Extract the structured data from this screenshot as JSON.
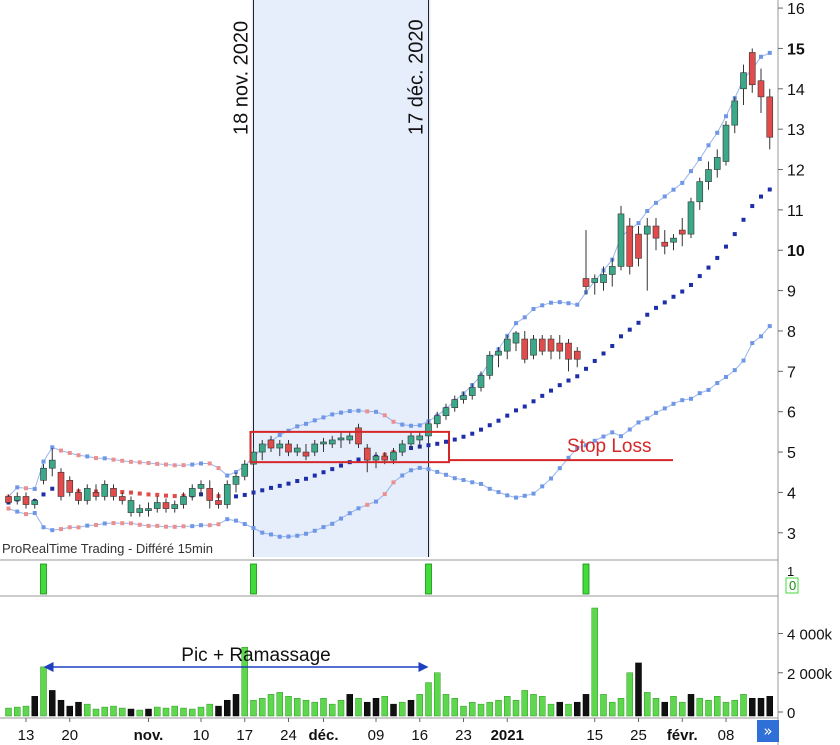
{
  "watermark": "ProRealTime Trading - Différé 15min",
  "nav_button_glyph": "»",
  "colors": {
    "up": "#3aa889",
    "down": "#e24b4b",
    "band_upper": "#6f97e6",
    "band_red": "#ec8f8f",
    "mid_dots": "#1d2ea8",
    "highlight_fill": "#e6eefb",
    "rect": "#d62728",
    "volume_up": "#5ed64e",
    "volume_down": "#111111",
    "signal": "#3fdc3a"
  },
  "chart_data": {
    "type": "candlestick",
    "y_ticks": [
      3,
      4,
      5,
      6,
      7,
      8,
      9,
      10,
      11,
      12,
      13,
      14,
      15,
      16
    ],
    "ylim": [
      2.4,
      16.2
    ],
    "x_ticks": [
      {
        "label": "13",
        "i": 2
      },
      {
        "label": "20",
        "i": 7
      },
      {
        "label": "nov.",
        "i": 16
      },
      {
        "label": "10",
        "i": 22
      },
      {
        "label": "17",
        "i": 27
      },
      {
        "label": "24",
        "i": 32
      },
      {
        "label": "déc.",
        "i": 36
      },
      {
        "label": "09",
        "i": 42
      },
      {
        "label": "16",
        "i": 47
      },
      {
        "label": "23",
        "i": 52
      },
      {
        "label": "2021",
        "i": 57
      },
      {
        "label": "15",
        "i": 67
      },
      {
        "label": "25",
        "i": 72
      },
      {
        "label": "févr.",
        "i": 77
      },
      {
        "label": "08",
        "i": 82
      }
    ],
    "vlines": [
      {
        "label": "18 nov. 2020",
        "i": 28
      },
      {
        "label": "17 déc. 2020",
        "i": 48
      }
    ],
    "stop_loss": {
      "label": "Stop Loss",
      "value": 4.8
    },
    "box": {
      "i0": 28,
      "i1": 50,
      "y0": 4.75,
      "y1": 5.5
    },
    "volume_annotation": {
      "label": "Pic + Ramassage",
      "i0": 4,
      "i1": 48
    },
    "volume_ticks": [
      {
        "label": "4 000k",
        "v": 4000
      },
      {
        "label": "2 000k",
        "v": 2000
      },
      {
        "label": "0",
        "v": 0
      }
    ],
    "vol_max": 5300,
    "signal_labels": [
      "1",
      "0"
    ],
    "signals": [
      4,
      28,
      48,
      66
    ],
    "candles": [
      [
        3.9,
        3.95,
        3.7,
        3.75
      ],
      [
        3.8,
        4.0,
        3.7,
        3.9
      ],
      [
        3.9,
        4.0,
        3.6,
        3.7
      ],
      [
        3.7,
        3.85,
        3.6,
        3.8
      ],
      [
        4.3,
        4.7,
        4.2,
        4.6
      ],
      [
        4.6,
        5.1,
        4.4,
        4.8
      ],
      [
        4.5,
        4.6,
        3.8,
        3.9
      ],
      [
        4.3,
        4.4,
        3.9,
        4.0
      ],
      [
        4.0,
        4.1,
        3.7,
        3.8
      ],
      [
        3.8,
        4.2,
        3.7,
        4.1
      ],
      [
        4.0,
        4.2,
        3.8,
        3.9
      ],
      [
        3.9,
        4.3,
        3.8,
        4.2
      ],
      [
        4.1,
        4.2,
        3.8,
        3.9
      ],
      [
        3.9,
        4.0,
        3.7,
        3.8
      ],
      [
        3.5,
        3.9,
        3.4,
        3.8
      ],
      [
        3.5,
        3.7,
        3.4,
        3.6
      ],
      [
        3.55,
        3.75,
        3.4,
        3.6
      ],
      [
        3.6,
        3.9,
        3.5,
        3.75
      ],
      [
        3.75,
        3.85,
        3.5,
        3.6
      ],
      [
        3.6,
        3.8,
        3.5,
        3.7
      ],
      [
        3.7,
        4.0,
        3.6,
        3.9
      ],
      [
        3.9,
        4.2,
        3.8,
        4.1
      ],
      [
        4.1,
        4.3,
        3.9,
        4.2
      ],
      [
        4.1,
        4.3,
        3.6,
        3.8
      ],
      [
        3.8,
        4.0,
        3.6,
        3.7
      ],
      [
        3.7,
        4.3,
        3.6,
        4.2
      ],
      [
        4.2,
        4.5,
        4.0,
        4.4
      ],
      [
        4.4,
        4.8,
        4.3,
        4.7
      ],
      [
        4.7,
        5.1,
        4.6,
        5.0
      ],
      [
        5.0,
        5.3,
        4.8,
        5.2
      ],
      [
        5.3,
        5.4,
        5.0,
        5.1
      ],
      [
        5.1,
        5.3,
        4.9,
        5.2
      ],
      [
        5.2,
        5.3,
        4.9,
        5.0
      ],
      [
        5.0,
        5.2,
        4.9,
        5.1
      ],
      [
        5.0,
        5.2,
        4.8,
        4.9
      ],
      [
        5.0,
        5.3,
        4.9,
        5.2
      ],
      [
        5.2,
        5.35,
        5.0,
        5.25
      ],
      [
        5.2,
        5.4,
        5.1,
        5.3
      ],
      [
        5.3,
        5.5,
        5.1,
        5.35
      ],
      [
        5.3,
        5.5,
        5.2,
        5.4
      ],
      [
        5.6,
        5.7,
        5.1,
        5.2
      ],
      [
        5.1,
        5.2,
        4.5,
        4.8
      ],
      [
        4.8,
        5.0,
        4.6,
        4.9
      ],
      [
        4.9,
        5.0,
        4.7,
        4.8
      ],
      [
        4.8,
        5.1,
        4.7,
        5.0
      ],
      [
        5.0,
        5.3,
        4.9,
        5.2
      ],
      [
        5.2,
        5.5,
        5.1,
        5.4
      ],
      [
        5.3,
        5.5,
        5.1,
        5.4
      ],
      [
        5.4,
        5.8,
        5.2,
        5.7
      ],
      [
        5.7,
        6.0,
        5.6,
        5.9
      ],
      [
        5.9,
        6.2,
        5.8,
        6.1
      ],
      [
        6.1,
        6.4,
        6.0,
        6.3
      ],
      [
        6.3,
        6.5,
        6.2,
        6.4
      ],
      [
        6.4,
        6.7,
        6.3,
        6.6
      ],
      [
        6.6,
        7.0,
        6.5,
        6.9
      ],
      [
        6.9,
        7.5,
        6.8,
        7.4
      ],
      [
        7.4,
        7.6,
        7.1,
        7.5
      ],
      [
        7.5,
        7.9,
        7.3,
        7.8
      ],
      [
        7.7,
        8.0,
        7.5,
        7.95
      ],
      [
        7.8,
        8.0,
        7.2,
        7.3
      ],
      [
        7.4,
        7.9,
        7.3,
        7.8
      ],
      [
        7.8,
        7.9,
        7.4,
        7.5
      ],
      [
        7.8,
        7.9,
        7.3,
        7.5
      ],
      [
        7.7,
        7.9,
        7.3,
        7.5
      ],
      [
        7.7,
        7.8,
        7.0,
        7.3
      ],
      [
        7.5,
        7.6,
        7.1,
        7.3
      ],
      [
        9.3,
        10.5,
        8.9,
        9.1
      ],
      [
        9.2,
        9.4,
        8.9,
        9.3
      ],
      [
        9.2,
        9.6,
        9.0,
        9.4
      ],
      [
        9.4,
        9.8,
        9.1,
        9.6
      ],
      [
        9.6,
        11.1,
        9.5,
        10.9
      ],
      [
        10.6,
        10.8,
        9.4,
        9.6
      ],
      [
        10.4,
        10.6,
        9.6,
        9.8
      ],
      [
        10.4,
        10.8,
        9.0,
        10.6
      ],
      [
        10.6,
        10.8,
        10.0,
        10.3
      ],
      [
        10.2,
        10.5,
        9.9,
        10.1
      ],
      [
        10.2,
        10.4,
        10.0,
        10.3
      ],
      [
        10.5,
        10.8,
        10.1,
        10.4
      ],
      [
        10.4,
        11.3,
        10.3,
        11.2
      ],
      [
        11.2,
        11.8,
        11.0,
        11.7
      ],
      [
        11.7,
        12.2,
        11.5,
        12.0
      ],
      [
        12.0,
        12.5,
        11.8,
        12.3
      ],
      [
        12.2,
        13.2,
        12.1,
        13.1
      ],
      [
        13.1,
        13.8,
        12.9,
        13.7
      ],
      [
        14.0,
        14.6,
        13.6,
        14.4
      ],
      [
        14.9,
        15.0,
        13.9,
        14.1
      ],
      [
        14.2,
        14.5,
        13.4,
        13.8
      ],
      [
        13.8,
        14.0,
        12.5,
        12.8
      ]
    ],
    "volumes": [
      [
        200,
        1
      ],
      [
        250,
        1
      ],
      [
        300,
        1
      ],
      [
        800,
        0
      ],
      [
        2300,
        1
      ],
      [
        1100,
        0
      ],
      [
        600,
        0
      ],
      [
        300,
        0
      ],
      [
        500,
        0
      ],
      [
        400,
        1
      ],
      [
        150,
        1
      ],
      [
        250,
        1
      ],
      [
        300,
        1
      ],
      [
        200,
        1
      ],
      [
        150,
        0
      ],
      [
        100,
        1
      ],
      [
        150,
        0
      ],
      [
        250,
        1
      ],
      [
        200,
        1
      ],
      [
        300,
        1
      ],
      [
        200,
        1
      ],
      [
        150,
        1
      ],
      [
        250,
        1
      ],
      [
        400,
        1
      ],
      [
        300,
        0
      ],
      [
        600,
        0
      ],
      [
        900,
        0
      ],
      [
        3300,
        1
      ],
      [
        600,
        1
      ],
      [
        700,
        1
      ],
      [
        900,
        1
      ],
      [
        1000,
        1
      ],
      [
        800,
        1
      ],
      [
        700,
        1
      ],
      [
        600,
        1
      ],
      [
        500,
        1
      ],
      [
        700,
        1
      ],
      [
        400,
        1
      ],
      [
        600,
        1
      ],
      [
        900,
        0
      ],
      [
        700,
        1
      ],
      [
        500,
        0
      ],
      [
        700,
        0
      ],
      [
        800,
        1
      ],
      [
        400,
        0
      ],
      [
        500,
        1
      ],
      [
        600,
        0
      ],
      [
        900,
        1
      ],
      [
        1500,
        1
      ],
      [
        2000,
        1
      ],
      [
        900,
        1
      ],
      [
        700,
        1
      ],
      [
        300,
        1
      ],
      [
        500,
        1
      ],
      [
        400,
        1
      ],
      [
        500,
        1
      ],
      [
        600,
        1
      ],
      [
        800,
        1
      ],
      [
        600,
        1
      ],
      [
        1100,
        1
      ],
      [
        900,
        1
      ],
      [
        800,
        1
      ],
      [
        400,
        1
      ],
      [
        500,
        0
      ],
      [
        400,
        1
      ],
      [
        500,
        0
      ],
      [
        900,
        0
      ],
      [
        5300,
        1
      ],
      [
        900,
        1
      ],
      [
        500,
        1
      ],
      [
        700,
        1
      ],
      [
        2000,
        1
      ],
      [
        2500,
        0
      ],
      [
        1000,
        1
      ],
      [
        700,
        1
      ],
      [
        500,
        0
      ],
      [
        800,
        1
      ],
      [
        500,
        1
      ],
      [
        900,
        0
      ],
      [
        700,
        1
      ],
      [
        600,
        1
      ],
      [
        800,
        1
      ],
      [
        500,
        1
      ],
      [
        600,
        1
      ],
      [
        900,
        1
      ],
      [
        700,
        0
      ],
      [
        700,
        0
      ],
      [
        800,
        0
      ]
    ]
  }
}
